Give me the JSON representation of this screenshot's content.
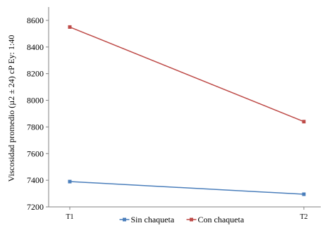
{
  "chart_data": {
    "type": "line",
    "categories": [
      "T1",
      "T2"
    ],
    "series": [
      {
        "name": "Sin chaqueta",
        "values": [
          7390,
          7295
        ],
        "color": "#4a7ebb"
      },
      {
        "name": "Con chaqueta",
        "values": [
          8550,
          7840
        ],
        "color": "#be4b48"
      }
    ],
    "ylabel": "Viscosidad promedio (µ2 ± 24) cP   Ey: 1:40",
    "ylim": [
      7200,
      8700
    ],
    "yticks": [
      7200,
      7400,
      7600,
      7800,
      8000,
      8200,
      8400,
      8600
    ],
    "legend_position": "bottom",
    "grid": false,
    "axis_color": "#808080"
  }
}
